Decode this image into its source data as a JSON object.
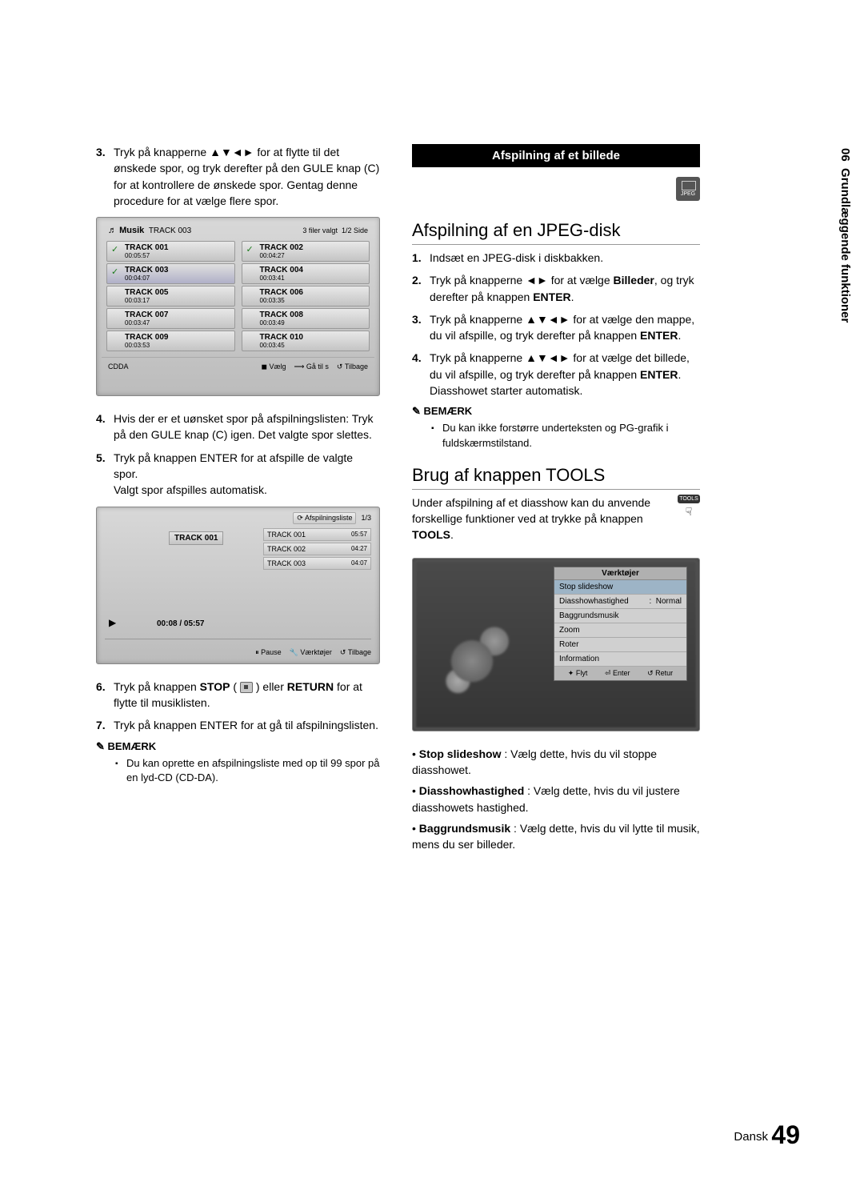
{
  "side": {
    "chapter_num": "06",
    "chapter_title": "Grundlæggende funktioner"
  },
  "left": {
    "step3": "Tryk på knapperne ▲▼◄► for at flytte til det ønskede spor, og tryk derefter på den GULE knap (C) for at kontrollere de ønskede spor. Gentag denne procedure for at vælge flere spor.",
    "screen1": {
      "musik": "Musik",
      "title": "TRACK 003",
      "sel": "3 filer valgt",
      "page": "1/2 Side",
      "tracks": [
        {
          "n": "TRACK 001",
          "t": "00:05:57",
          "c": true
        },
        {
          "n": "TRACK 002",
          "t": "00:04:27",
          "c": true
        },
        {
          "n": "TRACK 003",
          "t": "00:04:07",
          "c": true
        },
        {
          "n": "TRACK 004",
          "t": "00:03:41",
          "c": false
        },
        {
          "n": "TRACK 005",
          "t": "00:03:17",
          "c": false
        },
        {
          "n": "TRACK 006",
          "t": "00:03:35",
          "c": false
        },
        {
          "n": "TRACK 007",
          "t": "00:03:47",
          "c": false
        },
        {
          "n": "TRACK 008",
          "t": "00:03:49",
          "c": false
        },
        {
          "n": "TRACK 009",
          "t": "00:03:53",
          "c": false
        },
        {
          "n": "TRACK 010",
          "t": "00:03:45",
          "c": false
        }
      ],
      "cdda": "CDDA",
      "valg": "Vælg",
      "gatil": "Gå til s",
      "tilbage": "Tilbage"
    },
    "step4": "Hvis der er et uønsket spor på afspilningslisten: Tryk på den GULE knap (C) igen. Det valgte spor slettes.",
    "step5a": "Tryk på knappen ENTER for at afspille de valgte spor.",
    "step5b": "Valgt spor afspilles automatisk.",
    "screen2": {
      "pltitle": "Afspilningsliste",
      "plpage": "1/3",
      "cur": "TRACK 001",
      "rows": [
        {
          "n": "TRACK 001",
          "t": "05:57"
        },
        {
          "n": "TRACK 002",
          "t": "04:27"
        },
        {
          "n": "TRACK 003",
          "t": "04:07"
        }
      ],
      "time": "00:08 / 05:57",
      "pause": "Pause",
      "tools": "Værktøjer",
      "back": "Tilbage"
    },
    "step6": "Tryk på knappen STOP ( ▪ ) eller RETURN for at flytte til musiklisten.",
    "step7": "Tryk på knappen ENTER for at gå til afspilningslisten.",
    "note_hdr": "BEMÆRK",
    "note1": "Du kan oprette en afspilningsliste med op til 99 spor på en lyd-CD (CD-DA)."
  },
  "right": {
    "sec_title": "Afspilning af et billede",
    "jpeg_label": "JPEG",
    "h1": "Afspilning af en JPEG-disk",
    "steps": [
      "Indsæt en JPEG-disk i diskbakken.",
      "Tryk på knapperne ◄► for at vælge Billeder, og tryk derefter på knappen ENTER.",
      "Tryk på knapperne ▲▼◄► for at vælge den mappe, du vil afspille, og tryk derefter på knappen ENTER.",
      "Tryk på knapperne ▲▼◄► for at vælge det billede, du vil afspille, og tryk derefter på knappen ENTER.\nDiasshowet starter automatisk."
    ],
    "note_hdr": "BEMÆRK",
    "note1": "Du kan ikke forstørre underteksten og PG-grafik i fuldskærmstilstand.",
    "h2": "Brug af knappen TOOLS",
    "tools_para": "Under afspilning af et diasshow kan du anvende forskellige funktioner ved at trykke på knappen TOOLS.",
    "tools_btn": "TOOLS",
    "toolsbox": {
      "hdr": "Værktøjer",
      "items": [
        {
          "l": "Stop slideshow",
          "r": ""
        },
        {
          "l": "Diasshowhastighed",
          "r": "Normal"
        },
        {
          "l": "Baggrundsmusik",
          "r": ""
        },
        {
          "l": "Zoom",
          "r": ""
        },
        {
          "l": "Roter",
          "r": ""
        },
        {
          "l": "Information",
          "r": ""
        }
      ],
      "flyt": "Flyt",
      "enter": "Enter",
      "retur": "Retur"
    },
    "pts": [
      {
        "b": "Stop slideshow",
        "t": " : Vælg dette, hvis du vil stoppe diasshowet."
      },
      {
        "b": "Diasshowhastighed",
        "t": " : Vælg dette, hvis du vil justere diasshowets hastighed."
      },
      {
        "b": "Baggrundsmusik",
        "t": " : Vælg dette, hvis du vil lytte til musik, mens du ser billeder."
      }
    ]
  },
  "footer": {
    "lang": "Dansk",
    "page": "49"
  }
}
